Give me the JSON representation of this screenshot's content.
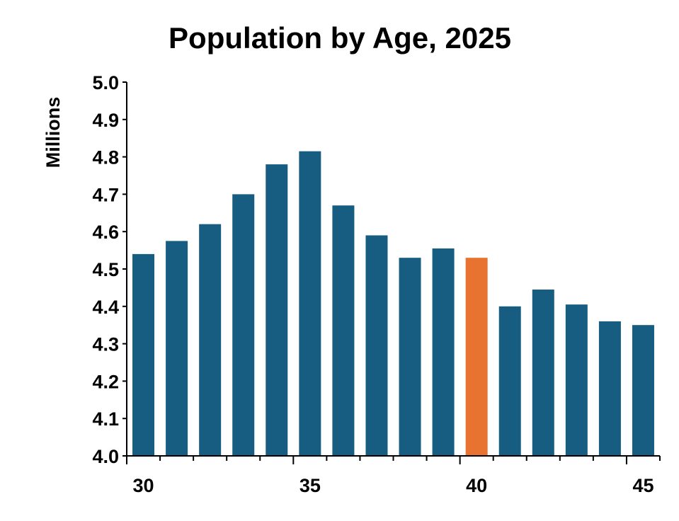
{
  "chart_data": {
    "type": "bar",
    "title": "Population by Age, 2025",
    "xlabel": "",
    "ylabel": "Millions",
    "ylim": [
      4.0,
      5.0
    ],
    "yticks": [
      "4.0",
      "4.1",
      "4.2",
      "4.3",
      "4.4",
      "4.5",
      "4.6",
      "4.7",
      "4.8",
      "4.9",
      "5.0"
    ],
    "xticks": [
      "30",
      "35",
      "40",
      "45"
    ],
    "categories": [
      30,
      31,
      32,
      33,
      34,
      35,
      36,
      37,
      38,
      39,
      40,
      41,
      42,
      43,
      44,
      45
    ],
    "values": [
      4.54,
      4.575,
      4.62,
      4.7,
      4.78,
      4.815,
      4.67,
      4.59,
      4.53,
      4.555,
      4.53,
      4.4,
      4.445,
      4.405,
      4.36,
      4.35
    ],
    "highlight_category": 40,
    "grid": false,
    "legend": "none",
    "colors": {
      "bar": "#175d81",
      "highlight": "#e8722f",
      "axis": "#000000"
    }
  }
}
